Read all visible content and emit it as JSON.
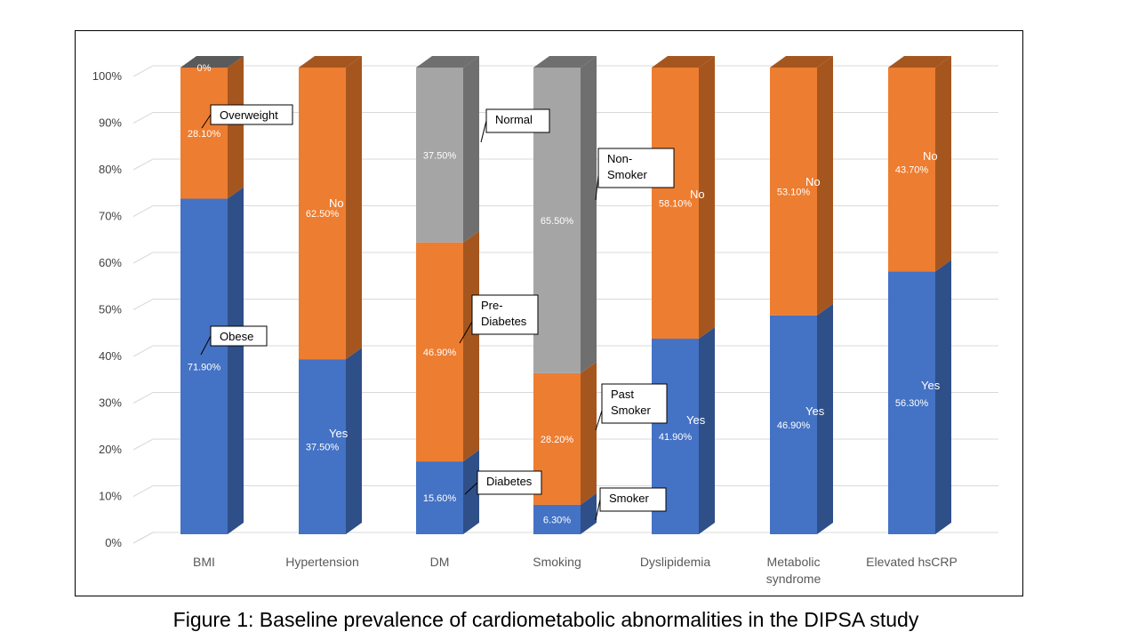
{
  "caption": "Figure 1: Baseline prevalence of cardiometabolic abnormalities in the DIPSA study",
  "chart_data": {
    "type": "bar",
    "stacked": true,
    "three_d": true,
    "grid": true,
    "ylim": [
      0,
      100
    ],
    "y_ticks": [
      "0%",
      "10%",
      "20%",
      "30%",
      "40%",
      "50%",
      "60%",
      "70%",
      "80%",
      "90%",
      "100%"
    ],
    "colors": {
      "blue": "#4472c4",
      "orange": "#ed7d31",
      "gray": "#a5a5a5",
      "darkgray": "#7f7f7f"
    },
    "categories": [
      {
        "label": [
          "BMI"
        ],
        "segments": [
          {
            "value": 71.9,
            "color": "blue",
            "label": "71.90%"
          },
          {
            "value": 28.1,
            "color": "orange",
            "label": "28.10%"
          },
          {
            "value": 0,
            "color": "darkgray",
            "label": "0%"
          }
        ]
      },
      {
        "label": [
          "Hypertension"
        ],
        "segments": [
          {
            "value": 37.5,
            "color": "blue",
            "label": "37.50%"
          },
          {
            "value": 62.5,
            "color": "orange",
            "label": "62.50%"
          }
        ]
      },
      {
        "label": [
          "DM"
        ],
        "segments": [
          {
            "value": 15.6,
            "color": "blue",
            "label": "15.60%"
          },
          {
            "value": 46.9,
            "color": "orange",
            "label": "46.90%"
          },
          {
            "value": 37.5,
            "color": "gray",
            "label": "37.50%"
          }
        ]
      },
      {
        "label": [
          "Smoking"
        ],
        "segments": [
          {
            "value": 6.3,
            "color": "blue",
            "label": "6.30%"
          },
          {
            "value": 28.2,
            "color": "orange",
            "label": "28.20%"
          },
          {
            "value": 65.5,
            "color": "gray",
            "label": "65.50%"
          }
        ]
      },
      {
        "label": [
          "Dyslipidemia"
        ],
        "segments": [
          {
            "value": 41.9,
            "color": "blue",
            "label": "41.90%"
          },
          {
            "value": 58.1,
            "color": "orange",
            "label": "58.10%"
          }
        ]
      },
      {
        "label": [
          "Metabolic",
          "syndrome"
        ],
        "segments": [
          {
            "value": 46.9,
            "color": "blue",
            "label": "46.90%"
          },
          {
            "value": 53.1,
            "color": "orange",
            "label": "53.10%"
          }
        ]
      },
      {
        "label": [
          "Elevated hsCRP"
        ],
        "segments": [
          {
            "value": 56.3,
            "color": "blue",
            "label": "56.30%"
          },
          {
            "value": 43.7,
            "color": "orange",
            "label": "43.70%"
          }
        ]
      }
    ],
    "annotations": [
      {
        "cat": 0,
        "seg": 0,
        "lines": [
          "Obese"
        ],
        "boxed": true
      },
      {
        "cat": 0,
        "seg": 1,
        "lines": [
          "Overweight"
        ],
        "boxed": true
      },
      {
        "cat": 1,
        "seg": 0,
        "lines": [
          "Yes"
        ],
        "boxed": false
      },
      {
        "cat": 1,
        "seg": 1,
        "lines": [
          "No"
        ],
        "boxed": false
      },
      {
        "cat": 2,
        "seg": 0,
        "lines": [
          "Diabetes"
        ],
        "boxed": true
      },
      {
        "cat": 2,
        "seg": 1,
        "lines": [
          "Pre-",
          "Diabetes"
        ],
        "boxed": true
      },
      {
        "cat": 2,
        "seg": 2,
        "lines": [
          "Normal"
        ],
        "boxed": true
      },
      {
        "cat": 3,
        "seg": 0,
        "lines": [
          "Smoker"
        ],
        "boxed": true
      },
      {
        "cat": 3,
        "seg": 1,
        "lines": [
          "Past",
          "Smoker"
        ],
        "boxed": true
      },
      {
        "cat": 3,
        "seg": 2,
        "lines": [
          "Non-",
          "Smoker"
        ],
        "boxed": true
      },
      {
        "cat": 4,
        "seg": 0,
        "lines": [
          "Yes"
        ],
        "boxed": false
      },
      {
        "cat": 4,
        "seg": 1,
        "lines": [
          "No"
        ],
        "boxed": false
      },
      {
        "cat": 5,
        "seg": 0,
        "lines": [
          "Yes"
        ],
        "boxed": false
      },
      {
        "cat": 5,
        "seg": 1,
        "lines": [
          "No"
        ],
        "boxed": false
      },
      {
        "cat": 6,
        "seg": 0,
        "lines": [
          "Yes"
        ],
        "boxed": false
      },
      {
        "cat": 6,
        "seg": 1,
        "lines": [
          "No"
        ],
        "boxed": false
      }
    ]
  }
}
